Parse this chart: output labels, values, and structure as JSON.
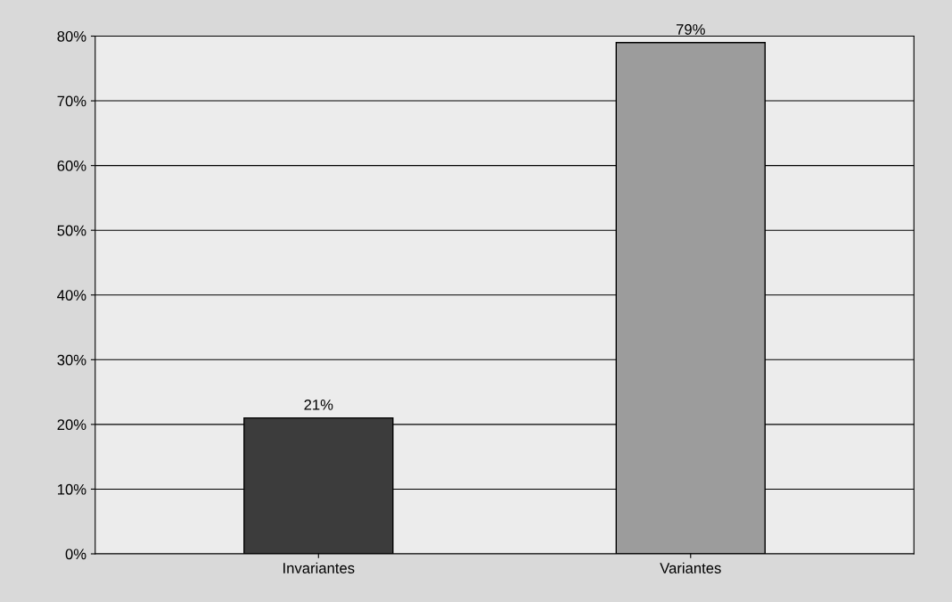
{
  "chart_data": {
    "type": "bar",
    "categories": [
      "Invariantes",
      "Variantes"
    ],
    "values": [
      21,
      79
    ],
    "colors": [
      "#3c3c3c",
      "#9c9c9c"
    ],
    "value_labels": [
      "21%",
      "79%"
    ],
    "ylim": [
      0,
      80
    ],
    "yticks": [
      {
        "value": 0,
        "label": "0%"
      },
      {
        "value": 10,
        "label": "10%"
      },
      {
        "value": 20,
        "label": "20%"
      },
      {
        "value": 30,
        "label": "30%"
      },
      {
        "value": 40,
        "label": "40%"
      },
      {
        "value": 50,
        "label": "50%"
      },
      {
        "value": 60,
        "label": "60%"
      },
      {
        "value": 70,
        "label": "70%"
      },
      {
        "value": 80,
        "label": "80%"
      }
    ],
    "grid": "y",
    "legend": false
  }
}
